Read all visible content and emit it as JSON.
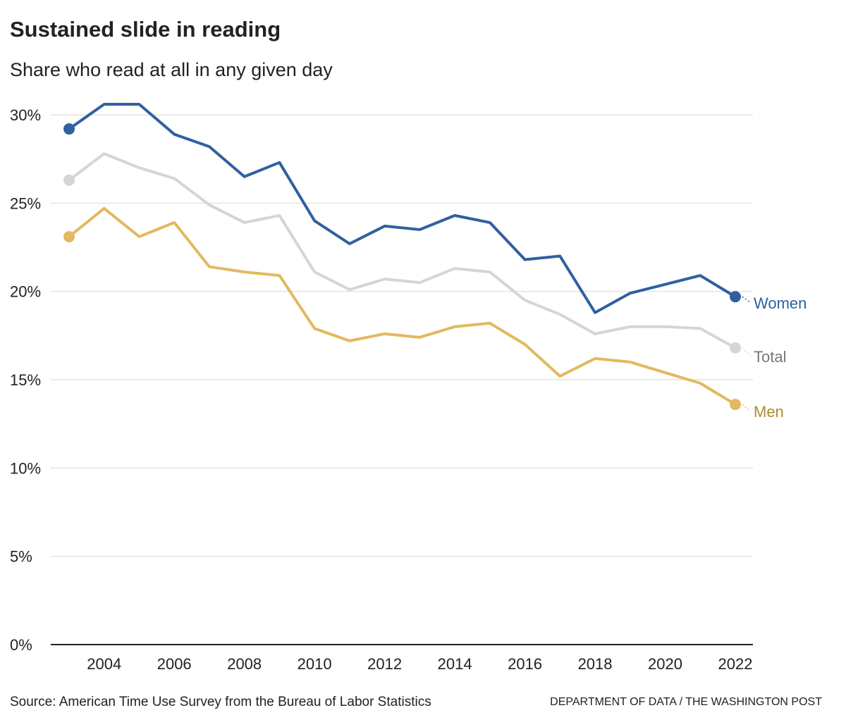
{
  "title": "Sustained slide in reading",
  "subtitle": "Share who read at all in any given day",
  "source": "Source: American Time Use Survey from the Bureau of Labor Statistics",
  "credit": "DEPARTMENT OF DATA / THE WASHINGTON POST",
  "chart_data": {
    "type": "line",
    "title": "Sustained slide in reading",
    "subtitle": "Share who read at all in any given day",
    "x": [
      2003,
      2004,
      2005,
      2006,
      2007,
      2008,
      2009,
      2010,
      2011,
      2012,
      2013,
      2014,
      2015,
      2016,
      2017,
      2018,
      2019,
      2020,
      2021,
      2022
    ],
    "xticks": [
      2004,
      2006,
      2008,
      2010,
      2012,
      2014,
      2016,
      2018,
      2020,
      2022
    ],
    "yticks": [
      0,
      5,
      10,
      15,
      20,
      25,
      30
    ],
    "ytick_labels": [
      "0%",
      "5%",
      "10%",
      "15%",
      "20%",
      "25%",
      "30%"
    ],
    "ylim": [
      0,
      30
    ],
    "xlim": [
      2003,
      2022
    ],
    "grid": "horizontal",
    "legend": "direct labels at line ends (right)",
    "series": [
      {
        "name": "Women",
        "color": "#30609f",
        "label_color": "#30609f",
        "values": [
          29.2,
          30.6,
          30.6,
          28.9,
          28.2,
          26.5,
          27.3,
          24.0,
          22.7,
          23.7,
          23.5,
          24.3,
          23.9,
          21.8,
          22.0,
          18.8,
          19.9,
          20.4,
          20.9,
          19.7
        ]
      },
      {
        "name": "Total",
        "color": "#d5d5d5",
        "label_color": "#777777",
        "values": [
          26.3,
          27.8,
          27.0,
          26.4,
          24.9,
          23.9,
          24.3,
          21.1,
          20.1,
          20.7,
          20.5,
          21.3,
          21.1,
          19.5,
          18.7,
          17.6,
          18.0,
          18.0,
          17.9,
          16.8
        ]
      },
      {
        "name": "Men",
        "color": "#e2b95e",
        "label_color": "#b08a2e",
        "values": [
          23.1,
          24.7,
          23.1,
          23.9,
          21.4,
          21.1,
          20.9,
          17.9,
          17.2,
          17.6,
          17.4,
          18.0,
          18.2,
          17.0,
          15.2,
          16.2,
          16.0,
          15.4,
          14.8,
          13.6
        ]
      }
    ]
  }
}
